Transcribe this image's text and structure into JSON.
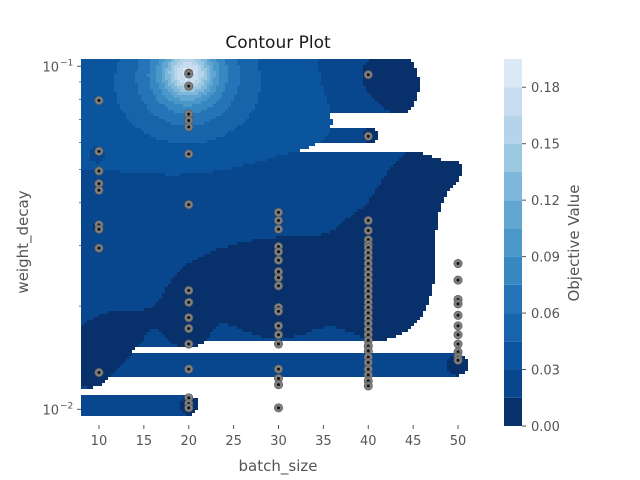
{
  "chart_data": {
    "type": "contour",
    "title": "Contour Plot",
    "xlabel": "batch_size",
    "ylabel": "weight_decay",
    "colorbar_label": "Objective Value",
    "xlim": [
      8,
      52
    ],
    "ylim": [
      0.009,
      0.105
    ],
    "y_scale": "log",
    "x_ticks": [
      "10",
      "15",
      "20",
      "25",
      "30",
      "35",
      "40",
      "45",
      "50"
    ],
    "x_tick_values": [
      10,
      15,
      20,
      25,
      30,
      35,
      40,
      45,
      50
    ],
    "y_tick_labels": [
      {
        "base": "10",
        "exp": "−2",
        "value": 0.01
      },
      {
        "base": "10",
        "exp": "−1",
        "value": 0.1
      }
    ],
    "colorbar_ticks": [
      "0.00",
      "0.03",
      "0.06",
      "0.09",
      "0.12",
      "0.15",
      "0.18"
    ],
    "colorbar_tick_values": [
      0.0,
      0.03,
      0.06,
      0.09,
      0.12,
      0.15,
      0.18
    ],
    "levels": [
      0.0,
      0.015,
      0.03,
      0.045,
      0.06,
      0.075,
      0.09,
      0.105,
      0.12,
      0.135,
      0.15,
      0.165,
      0.18,
      0.195
    ],
    "level_colors": [
      "#08306b",
      "#08468d",
      "#0b559f",
      "#1764ab",
      "#2474b7",
      "#3787c0",
      "#4a98c9",
      "#61a7d2",
      "#7db8da",
      "#9ac8e0",
      "#b5d4e9",
      "#c9ddf0",
      "#dbe9f6",
      "#e8f1fa"
    ],
    "points": [
      {
        "x": 10,
        "y": 0.0795
      },
      {
        "x": 10,
        "y": 0.0565
      },
      {
        "x": 10,
        "y": 0.0495
      },
      {
        "x": 10,
        "y": 0.0455
      },
      {
        "x": 10,
        "y": 0.0435
      },
      {
        "x": 10,
        "y": 0.0345
      },
      {
        "x": 10,
        "y": 0.0335
      },
      {
        "x": 10,
        "y": 0.0295
      },
      {
        "x": 10,
        "y": 0.0128
      },
      {
        "x": 20,
        "y": 0.0955
      },
      {
        "x": 20,
        "y": 0.095
      },
      {
        "x": 20,
        "y": 0.0875
      },
      {
        "x": 20,
        "y": 0.0725
      },
      {
        "x": 20,
        "y": 0.0695
      },
      {
        "x": 20,
        "y": 0.0665
      },
      {
        "x": 20,
        "y": 0.0555
      },
      {
        "x": 20,
        "y": 0.0395
      },
      {
        "x": 20,
        "y": 0.0222
      },
      {
        "x": 20,
        "y": 0.0205
      },
      {
        "x": 20,
        "y": 0.0185
      },
      {
        "x": 20,
        "y": 0.0172
      },
      {
        "x": 20,
        "y": 0.0155
      },
      {
        "x": 20,
        "y": 0.0131
      },
      {
        "x": 20,
        "y": 0.0108
      },
      {
        "x": 20,
        "y": 0.0104
      },
      {
        "x": 20,
        "y": 0.0101
      },
      {
        "x": 30,
        "y": 0.0375
      },
      {
        "x": 30,
        "y": 0.0355
      },
      {
        "x": 30,
        "y": 0.0335
      },
      {
        "x": 30,
        "y": 0.0298
      },
      {
        "x": 30,
        "y": 0.0288
      },
      {
        "x": 30,
        "y": 0.0272
      },
      {
        "x": 30,
        "y": 0.0252
      },
      {
        "x": 30,
        "y": 0.0242
      },
      {
        "x": 30,
        "y": 0.0229
      },
      {
        "x": 30,
        "y": 0.0198
      },
      {
        "x": 30,
        "y": 0.0193
      },
      {
        "x": 30,
        "y": 0.0175
      },
      {
        "x": 30,
        "y": 0.0165
      },
      {
        "x": 30,
        "y": 0.0155
      },
      {
        "x": 30,
        "y": 0.0131
      },
      {
        "x": 30,
        "y": 0.0123
      },
      {
        "x": 30,
        "y": 0.0118
      },
      {
        "x": 30,
        "y": 0.0101
      },
      {
        "x": 40,
        "y": 0.0945
      },
      {
        "x": 40,
        "y": 0.0625
      },
      {
        "x": 40,
        "y": 0.0355
      },
      {
        "x": 40,
        "y": 0.0332
      },
      {
        "x": 40,
        "y": 0.0312
      },
      {
        "x": 40,
        "y": 0.0302
      },
      {
        "x": 40,
        "y": 0.0296
      },
      {
        "x": 40,
        "y": 0.0286
      },
      {
        "x": 40,
        "y": 0.0276
      },
      {
        "x": 40,
        "y": 0.0266
      },
      {
        "x": 40,
        "y": 0.0256
      },
      {
        "x": 40,
        "y": 0.0247
      },
      {
        "x": 40,
        "y": 0.0238
      },
      {
        "x": 40,
        "y": 0.0229
      },
      {
        "x": 40,
        "y": 0.0221
      },
      {
        "x": 40,
        "y": 0.0213
      },
      {
        "x": 40,
        "y": 0.0205
      },
      {
        "x": 40,
        "y": 0.0198
      },
      {
        "x": 40,
        "y": 0.0191
      },
      {
        "x": 40,
        "y": 0.0184
      },
      {
        "x": 40,
        "y": 0.0178
      },
      {
        "x": 40,
        "y": 0.0171
      },
      {
        "x": 40,
        "y": 0.0165
      },
      {
        "x": 40,
        "y": 0.0159
      },
      {
        "x": 40,
        "y": 0.0153
      },
      {
        "x": 40,
        "y": 0.0148
      },
      {
        "x": 40,
        "y": 0.0142
      },
      {
        "x": 40,
        "y": 0.0137
      },
      {
        "x": 40,
        "y": 0.0131
      },
      {
        "x": 40,
        "y": 0.0126
      },
      {
        "x": 40,
        "y": 0.0121
      },
      {
        "x": 40,
        "y": 0.0117
      },
      {
        "x": 50,
        "y": 0.0266
      },
      {
        "x": 50,
        "y": 0.0238
      },
      {
        "x": 50,
        "y": 0.0209
      },
      {
        "x": 50,
        "y": 0.0203
      },
      {
        "x": 50,
        "y": 0.0188
      },
      {
        "x": 50,
        "y": 0.0175
      },
      {
        "x": 50,
        "y": 0.0165
      },
      {
        "x": 50,
        "y": 0.0155
      },
      {
        "x": 50,
        "y": 0.0147
      },
      {
        "x": 50,
        "y": 0.0142
      },
      {
        "x": 50,
        "y": 0.0139
      }
    ]
  }
}
